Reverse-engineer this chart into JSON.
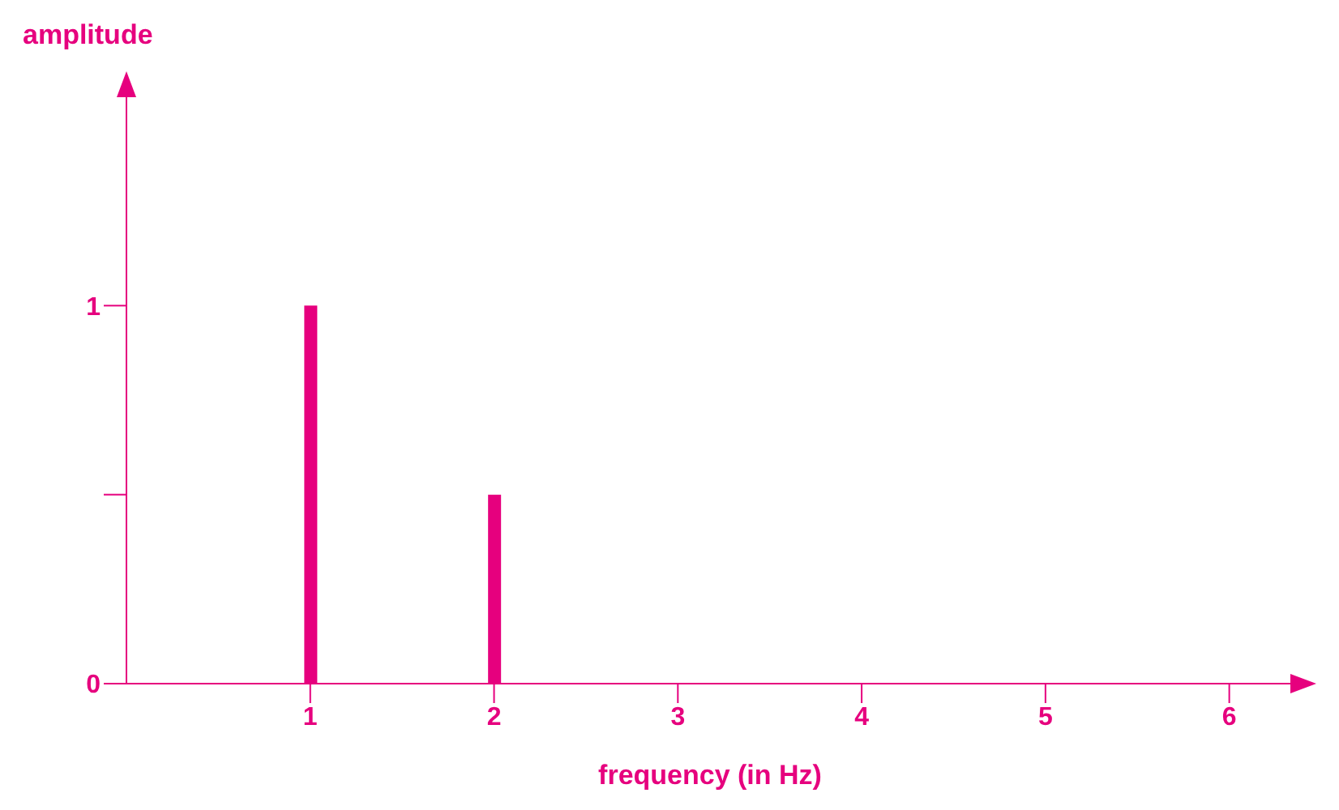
{
  "chart_data": {
    "type": "bar",
    "xlabel": "frequency (in Hz)",
    "ylabel": "amplitude",
    "x": [
      1,
      2
    ],
    "series": [
      {
        "color": "#e6007e",
        "values": [
          1,
          0.5
        ]
      }
    ],
    "xlim": [
      0,
      6.35
    ],
    "xticks": [
      1,
      2,
      3,
      4,
      5,
      6
    ],
    "ylim": [
      0,
      1.56
    ],
    "yticks": [
      0,
      {
        "value": 0.5,
        "label": null
      },
      1
    ],
    "grid": false,
    "legend": false
  }
}
